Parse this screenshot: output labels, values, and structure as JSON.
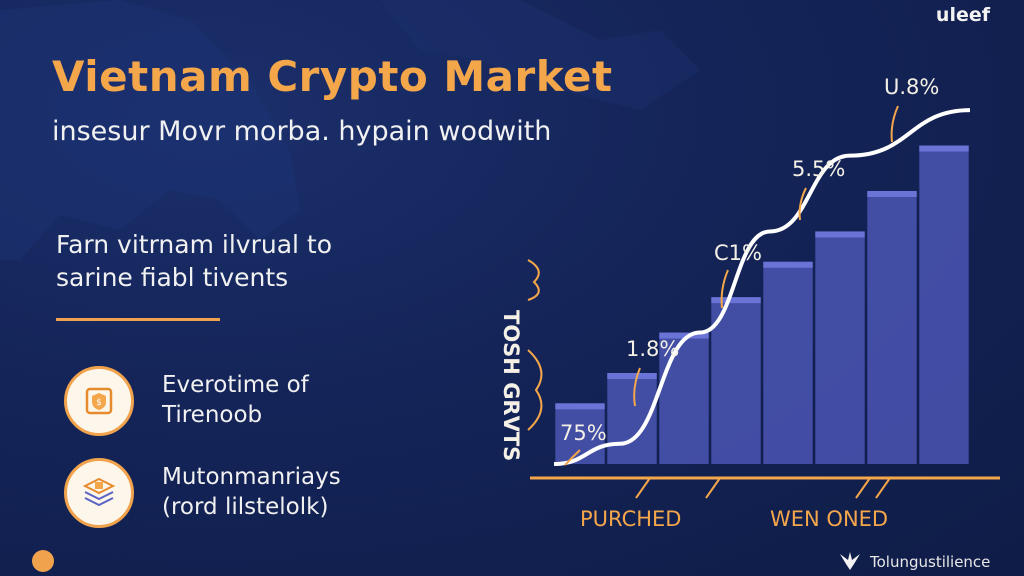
{
  "brand": "uleef",
  "title": "Vietnam Crypto Market",
  "subtitle": "insesur Movr morba. hypain wodwith",
  "blurb": {
    "line1": "Farn vitrnam ilvrual to",
    "line2": "sarine fiabl tivents"
  },
  "features": [
    {
      "line1": "Everotime of",
      "line2": "Tirenoob",
      "icon": "shield-icon"
    },
    {
      "line1": "Mutonmanriays",
      "line2": "(rord lilstelolk)",
      "icon": "layers-icon"
    }
  ],
  "footer": {
    "text": "Tolungustilience",
    "icon": "smiley-icon",
    "mark": "bird-logo-icon"
  },
  "colors": {
    "accent": "#f4a64b",
    "bar": "#4b55b3",
    "bar_top": "#6a74d6",
    "line": "#ffffff",
    "background": "#142458"
  },
  "chart_data": {
    "type": "bar",
    "ylabel": "TOSH GRVTS",
    "bar_values": [
      1.2,
      1.8,
      2.6,
      3.3,
      4.0,
      4.6,
      5.4,
      6.3
    ],
    "line_points": [
      {
        "value": "75%",
        "y": 0.4
      },
      {
        "value": "1.8%",
        "y": 2.6
      },
      {
        "value": "C1%",
        "y": 4.6
      },
      {
        "value": "5.5%",
        "y": 6.1
      },
      {
        "value": "U.8%",
        "y": 7.0
      }
    ],
    "line_y": [
      0.0,
      0.4,
      2.6,
      4.6,
      6.1,
      7.0
    ],
    "ylim": [
      0,
      7.2
    ],
    "xlabels": [
      "PURCHED",
      "WEN ONED"
    ]
  }
}
